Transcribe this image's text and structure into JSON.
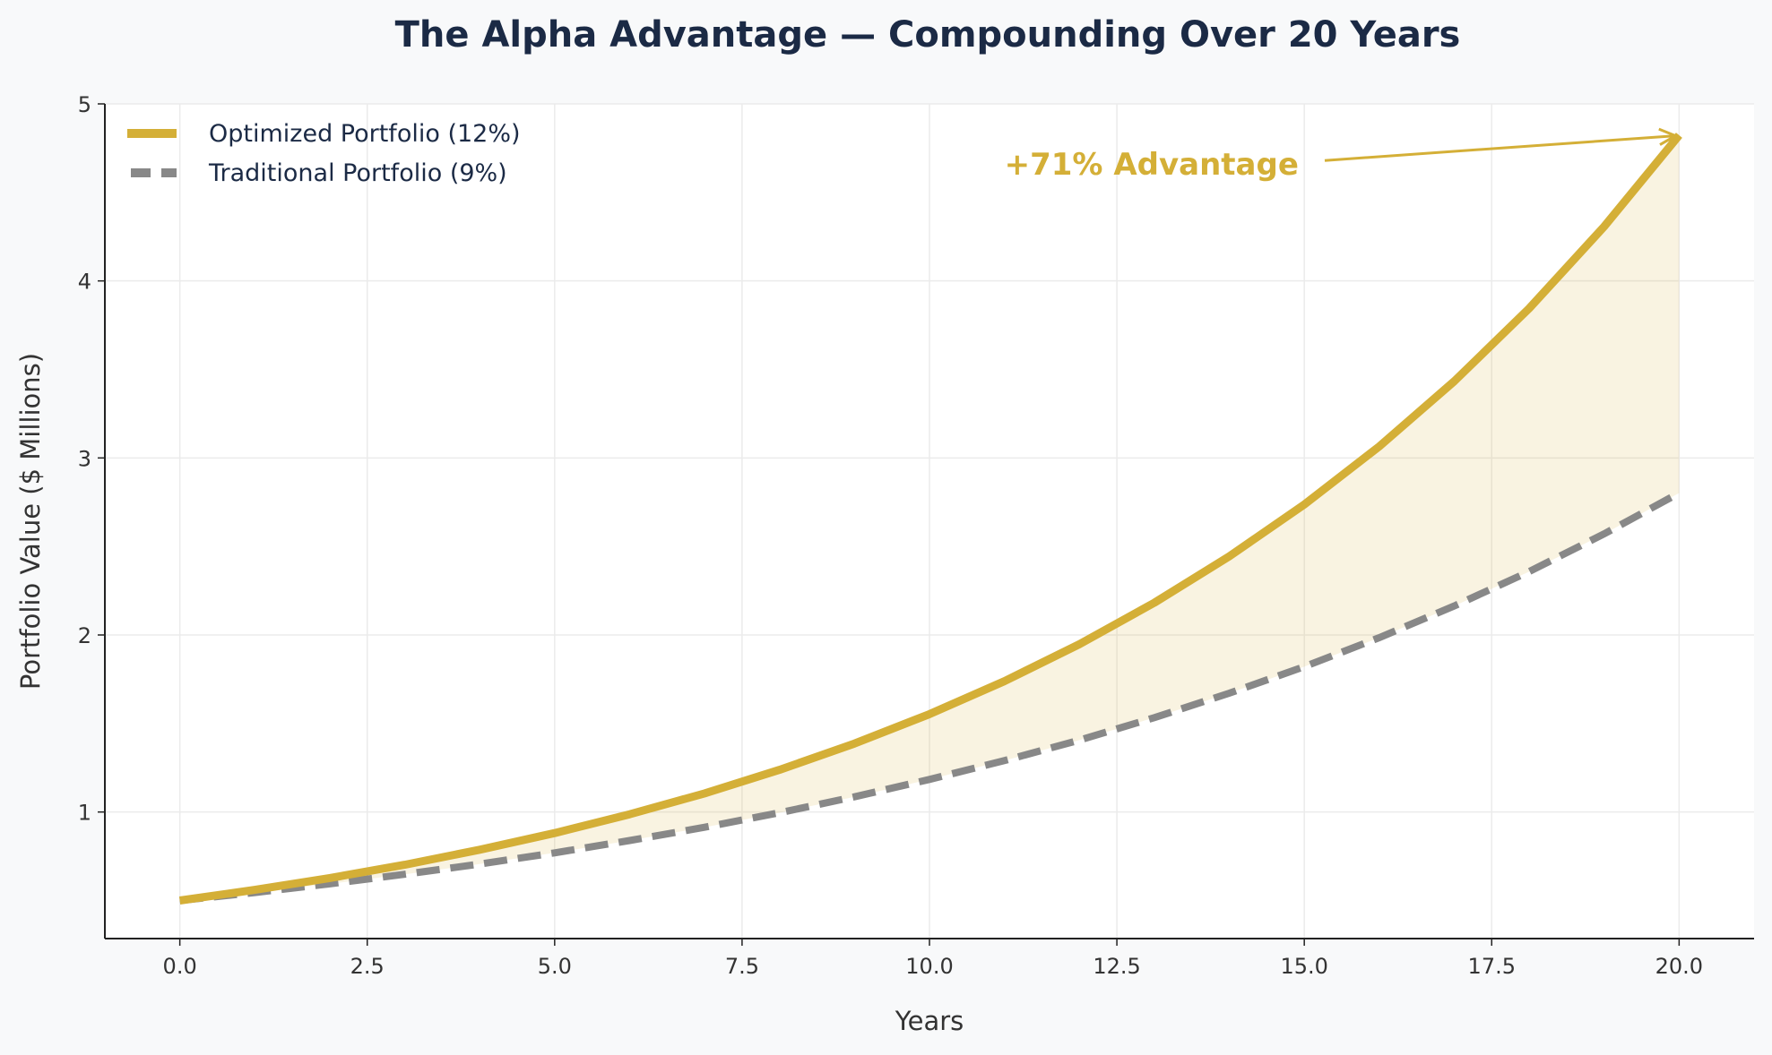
{
  "chart_data": {
    "type": "line",
    "title": "The Alpha Advantage — Compounding Over 20 Years",
    "xlabel": "Years",
    "ylabel": "Portfolio Value ($ Millions)",
    "xlim": [
      -1,
      21
    ],
    "ylim": [
      0.285,
      5
    ],
    "xticks": [
      "0.0",
      "2.5",
      "5.0",
      "7.5",
      "10.0",
      "12.5",
      "15.0",
      "17.5",
      "20.0"
    ],
    "yticks": [
      "1",
      "2",
      "3",
      "4",
      "5"
    ],
    "grid": true,
    "legend_position": "top-left",
    "x": [
      0,
      1,
      2,
      3,
      4,
      5,
      6,
      7,
      8,
      9,
      10,
      11,
      12,
      13,
      14,
      15,
      16,
      17,
      18,
      19,
      20
    ],
    "series": [
      {
        "name": "Optimized Portfolio (12%)",
        "color": "#d4af37",
        "style": "solid",
        "values": [
          0.5,
          0.56,
          0.627,
          0.702,
          0.787,
          0.881,
          0.987,
          1.105,
          1.238,
          1.387,
          1.553,
          1.739,
          1.948,
          2.182,
          2.444,
          2.737,
          3.065,
          3.433,
          3.845,
          4.307,
          4.823
        ]
      },
      {
        "name": "Traditional Portfolio (9%)",
        "color": "#888888",
        "style": "dashed",
        "values": [
          0.5,
          0.545,
          0.594,
          0.648,
          0.706,
          0.769,
          0.839,
          0.914,
          0.996,
          1.086,
          1.184,
          1.29,
          1.406,
          1.533,
          1.671,
          1.821,
          1.985,
          2.164,
          2.358,
          2.571,
          2.802
        ]
      }
    ],
    "fill_between": {
      "color": "#d4af37",
      "opacity": 0.15
    },
    "annotation": {
      "text": "+71% Advantage",
      "x": 11,
      "y": 4.66,
      "arrow_to": [
        20,
        4.82
      ],
      "color": "#d4af37"
    }
  }
}
